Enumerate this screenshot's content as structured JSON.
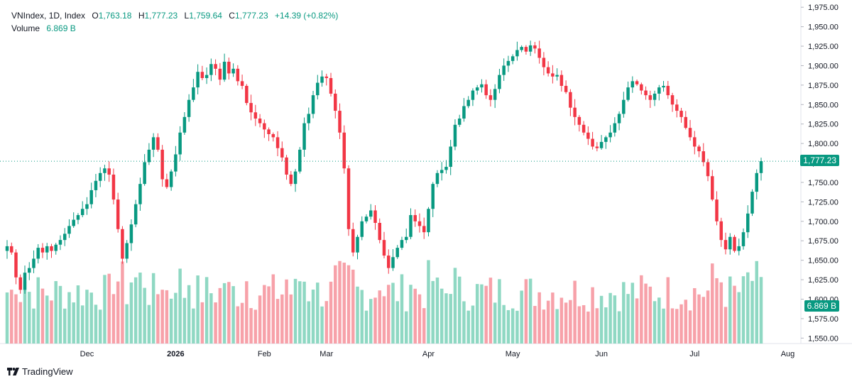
{
  "legend": {
    "symbol": "VNIndex, 1D, Index",
    "open_label": "O",
    "open": "1,763.18",
    "high_label": "H",
    "high": "1,777.23",
    "low_label": "L",
    "low": "1,759.64",
    "close_label": "C",
    "close": "1,777.23",
    "change": "+14.39 (+0.82%)",
    "volume_label": "Volume",
    "volume": "6.869 B"
  },
  "last_price_label": "1,777.23",
  "volume_label_axis": "6.869 B",
  "branding": {
    "text": "TradingView",
    "icon": "tradingview-logo-icon"
  },
  "colors": {
    "up": "#089981",
    "down": "#f23645",
    "up_volume": "#8fd8c3",
    "down_volume": "#f7a1a9",
    "last_price": "#089981"
  },
  "chart_data": {
    "type": "candlestick",
    "title": "VNIndex, 1D, Index",
    "y_axis": {
      "ylim": [
        1543,
        1977
      ],
      "ticks": [
        1550,
        1575,
        1600,
        1625,
        1650,
        1675,
        1700,
        1725,
        1750,
        1775,
        1800,
        1825,
        1850,
        1875,
        1900,
        1925,
        1950,
        1975
      ],
      "tick_labels": [
        "1,550.00",
        "1,575.00",
        "1,600.00",
        "1,625.00",
        "1,650.00",
        "1,675.00",
        "1,700.00",
        "1,725.00",
        "1,750.00",
        "1,775.00",
        "1,800.00",
        "1,825.00",
        "1,850.00",
        "1,875.00",
        "1,900.00",
        "1,925.00",
        "1,950.00",
        "1,975.00"
      ]
    },
    "x_axis": {
      "ticks": [
        {
          "label": "Dec",
          "index": 18
        },
        {
          "label": "2026",
          "index": 38
        },
        {
          "label": "Feb",
          "index": 58
        },
        {
          "label": "Mar",
          "index": 72
        },
        {
          "label": "Apr",
          "index": 95
        },
        {
          "label": "May",
          "index": 114
        },
        {
          "label": "Jun",
          "index": 134
        },
        {
          "label": "Jul",
          "index": 155
        },
        {
          "label": "Aug",
          "index": 176
        }
      ]
    },
    "grid": false,
    "closes": [
      1668,
      1660,
      1628,
      1612,
      1634,
      1640,
      1652,
      1666,
      1660,
      1668,
      1662,
      1670,
      1676,
      1684,
      1694,
      1702,
      1708,
      1716,
      1722,
      1740,
      1752,
      1762,
      1768,
      1760,
      1728,
      1690,
      1652,
      1672,
      1696,
      1722,
      1748,
      1776,
      1792,
      1808,
      1792,
      1754,
      1744,
      1764,
      1786,
      1814,
      1834,
      1856,
      1872,
      1892,
      1884,
      1888,
      1902,
      1896,
      1882,
      1905,
      1890,
      1896,
      1880,
      1874,
      1852,
      1840,
      1832,
      1826,
      1818,
      1812,
      1808,
      1794,
      1782,
      1760,
      1748,
      1764,
      1792,
      1826,
      1838,
      1862,
      1878,
      1886,
      1884,
      1864,
      1842,
      1814,
      1768,
      1690,
      1660,
      1680,
      1700,
      1706,
      1714,
      1698,
      1676,
      1656,
      1640,
      1654,
      1666,
      1676,
      1680,
      1708,
      1700,
      1694,
      1686,
      1716,
      1748,
      1762,
      1766,
      1770,
      1796,
      1824,
      1832,
      1848,
      1856,
      1868,
      1872,
      1876,
      1862,
      1856,
      1870,
      1888,
      1900,
      1906,
      1912,
      1920,
      1924,
      1918,
      1926,
      1922,
      1910,
      1898,
      1890,
      1886,
      1888,
      1874,
      1866,
      1846,
      1834,
      1824,
      1814,
      1806,
      1796,
      1794,
      1802,
      1808,
      1814,
      1826,
      1838,
      1856,
      1872,
      1880,
      1876,
      1868,
      1862,
      1856,
      1864,
      1872,
      1874,
      1862,
      1850,
      1842,
      1834,
      1820,
      1808,
      1796,
      1790,
      1776,
      1758,
      1728,
      1700,
      1676,
      1664,
      1680,
      1662,
      1668,
      1686,
      1710,
      1738,
      1762,
      1777.23
    ]
  }
}
